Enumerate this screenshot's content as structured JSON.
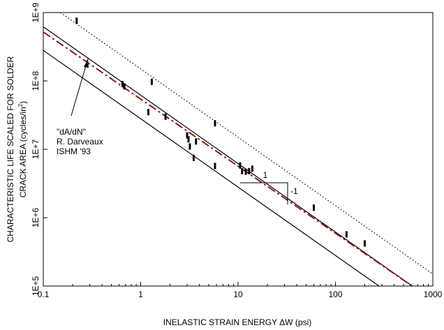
{
  "chart_data": {
    "type": "scatter",
    "title": "",
    "xscale": "log",
    "yscale": "log",
    "xlim": [
      0.1,
      1000
    ],
    "ylim": [
      100000,
      1000000000
    ],
    "xlabel": "INELASTIC STRAIN ENERGY ΔW  (psi)",
    "ylabel_line1": "CHARACTERISTIC LIFE SCALED FOR SOLDER",
    "ylabel_line2_pre": "CRACK AREA (cycles/in",
    "ylabel_line2_sup": "2",
    "ylabel_line2_post": ")",
    "x_ticks": [
      {
        "value": 0.1,
        "label": "0.1"
      },
      {
        "value": 1,
        "label": "1"
      },
      {
        "value": 10,
        "label": "10"
      },
      {
        "value": 100,
        "label": "100"
      },
      {
        "value": 1000,
        "label": "1000"
      }
    ],
    "y_ticks": [
      {
        "value": 100000,
        "label": "1E+5"
      },
      {
        "value": 1000000,
        "label": "1E+6"
      },
      {
        "value": 10000000,
        "label": "1E+7"
      },
      {
        "value": 100000000,
        "label": "1E+8"
      },
      {
        "value": 1000000000,
        "label": "1E+9"
      }
    ],
    "lines": [
      {
        "name": "upper-solid",
        "style": "solid",
        "color": "#000000",
        "points": [
          [
            0.1,
            620000000
          ],
          [
            700,
            88000
          ]
        ]
      },
      {
        "name": "lower-solid",
        "style": "solid",
        "color": "#000000",
        "points": [
          [
            0.1,
            280000000
          ],
          [
            280,
            100000
          ]
        ]
      },
      {
        "name": "dotted-bound",
        "style": "dotted",
        "color": "#000000",
        "points": [
          [
            0.15,
            1000000000
          ],
          [
            1000,
            150000
          ]
        ]
      },
      {
        "name": "fit-dashdot",
        "style": "dashdot",
        "color": "#8b1a1a",
        "points": [
          [
            0.1,
            520000000
          ],
          [
            750,
            82000
          ]
        ]
      }
    ],
    "points": [
      [
        0.22,
        760000000
      ],
      [
        0.65,
        90000000
      ],
      [
        0.68,
        83000000
      ],
      [
        1.2,
        35000000
      ],
      [
        1.3,
        97000000
      ],
      [
        1.8,
        30000000
      ],
      [
        3.0,
        16000000
      ],
      [
        3.1,
        14000000
      ],
      [
        3.2,
        11000000
      ],
      [
        3.5,
        7500000
      ],
      [
        3.7,
        13000000
      ],
      [
        5.8,
        24000000
      ],
      [
        5.8,
        5700000
      ],
      [
        10.5,
        5800000
      ],
      [
        11,
        4800000
      ],
      [
        12,
        4700000
      ],
      [
        13,
        4800000
      ],
      [
        14,
        5200000
      ],
      [
        60,
        1400000
      ],
      [
        130,
        570000
      ],
      [
        200,
        420000
      ]
    ],
    "slope_triangle": {
      "run_label": "1",
      "rise_label": "-1"
    },
    "annotation": {
      "lines": [
        "\"dA/dN\"",
        "R. Darveaux",
        "ISHM '93"
      ]
    }
  }
}
